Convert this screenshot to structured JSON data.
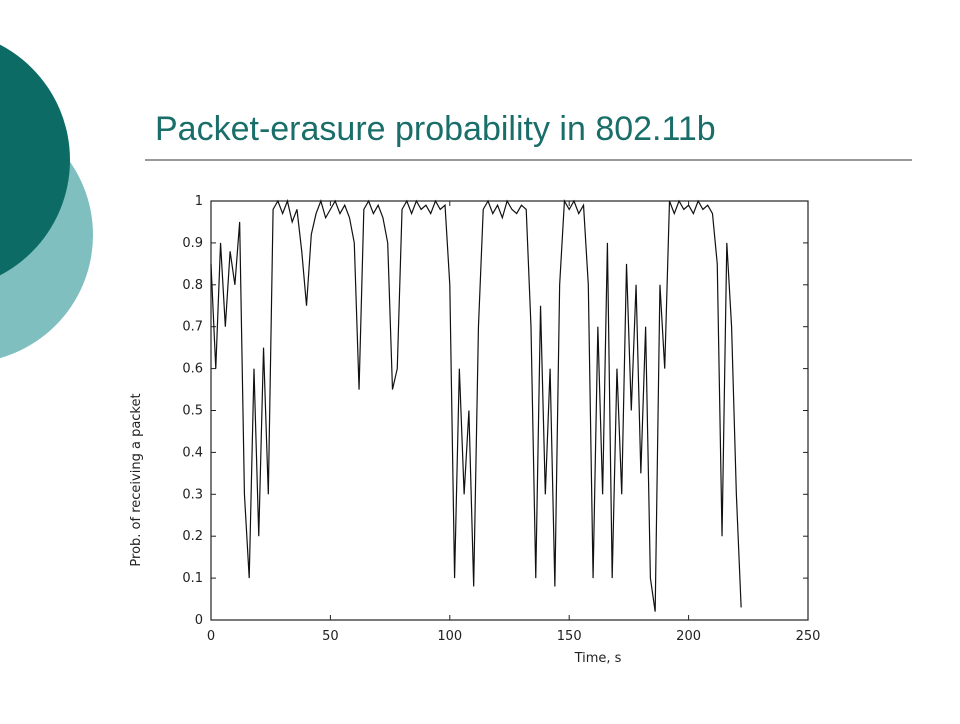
{
  "chart_data": {
    "type": "line",
    "title": "Packet-erasure probability in 802.11b",
    "xlabel": "Time, s",
    "ylabel": "Prob. of receiving a packet",
    "x": [
      0,
      2,
      4,
      6,
      8,
      10,
      12,
      14,
      16,
      18,
      20,
      22,
      24,
      26,
      28,
      30,
      32,
      34,
      36,
      38,
      40,
      42,
      44,
      46,
      48,
      50,
      52,
      54,
      56,
      58,
      60,
      62,
      64,
      66,
      68,
      70,
      72,
      74,
      76,
      78,
      80,
      82,
      84,
      86,
      88,
      90,
      92,
      94,
      96,
      98,
      100,
      102,
      104,
      106,
      108,
      110,
      112,
      114,
      116,
      118,
      120,
      122,
      124,
      126,
      128,
      130,
      132,
      134,
      136,
      138,
      140,
      142,
      144,
      146,
      148,
      150,
      152,
      154,
      156,
      158,
      160,
      162,
      164,
      166,
      168,
      170,
      172,
      174,
      176,
      178,
      180,
      182,
      184,
      186,
      188,
      190,
      192,
      194,
      196,
      198,
      200,
      202,
      204,
      206,
      208,
      210,
      212,
      214,
      216,
      218,
      220,
      222
    ],
    "values": [
      0.85,
      0.6,
      0.9,
      0.7,
      0.88,
      0.8,
      0.95,
      0.3,
      0.1,
      0.6,
      0.2,
      0.65,
      0.3,
      0.98,
      1,
      0.97,
      1,
      0.95,
      0.98,
      0.88,
      0.75,
      0.92,
      0.97,
      1,
      0.96,
      0.98,
      1,
      0.97,
      0.99,
      0.96,
      0.9,
      0.55,
      0.98,
      1,
      0.97,
      0.99,
      0.96,
      0.9,
      0.55,
      0.6,
      0.98,
      1,
      0.97,
      1,
      0.98,
      0.99,
      0.97,
      1,
      0.98,
      0.99,
      0.8,
      0.1,
      0.6,
      0.3,
      0.5,
      0.08,
      0.7,
      0.98,
      1,
      0.97,
      0.99,
      0.96,
      1,
      0.98,
      0.97,
      0.99,
      0.98,
      0.7,
      0.1,
      0.75,
      0.3,
      0.6,
      0.08,
      0.8,
      1,
      0.98,
      1,
      0.97,
      0.99,
      0.8,
      0.1,
      0.7,
      0.3,
      0.9,
      0.1,
      0.6,
      0.3,
      0.85,
      0.5,
      0.8,
      0.35,
      0.7,
      0.1,
      0.02,
      0.8,
      0.6,
      1,
      0.97,
      1,
      0.98,
      0.99,
      0.97,
      1,
      0.98,
      0.99,
      0.97,
      0.85,
      0.2,
      0.9,
      0.7,
      0.3,
      0.03
    ],
    "color": "#111111",
    "xlim": [
      0,
      250
    ],
    "xticks": [
      0,
      50,
      100,
      150,
      200,
      250
    ],
    "ylim": [
      0,
      1
    ],
    "yticks": [
      0,
      0.1,
      0.2,
      0.3,
      0.4,
      0.5,
      0.6,
      0.7,
      0.8,
      0.9,
      1
    ]
  }
}
